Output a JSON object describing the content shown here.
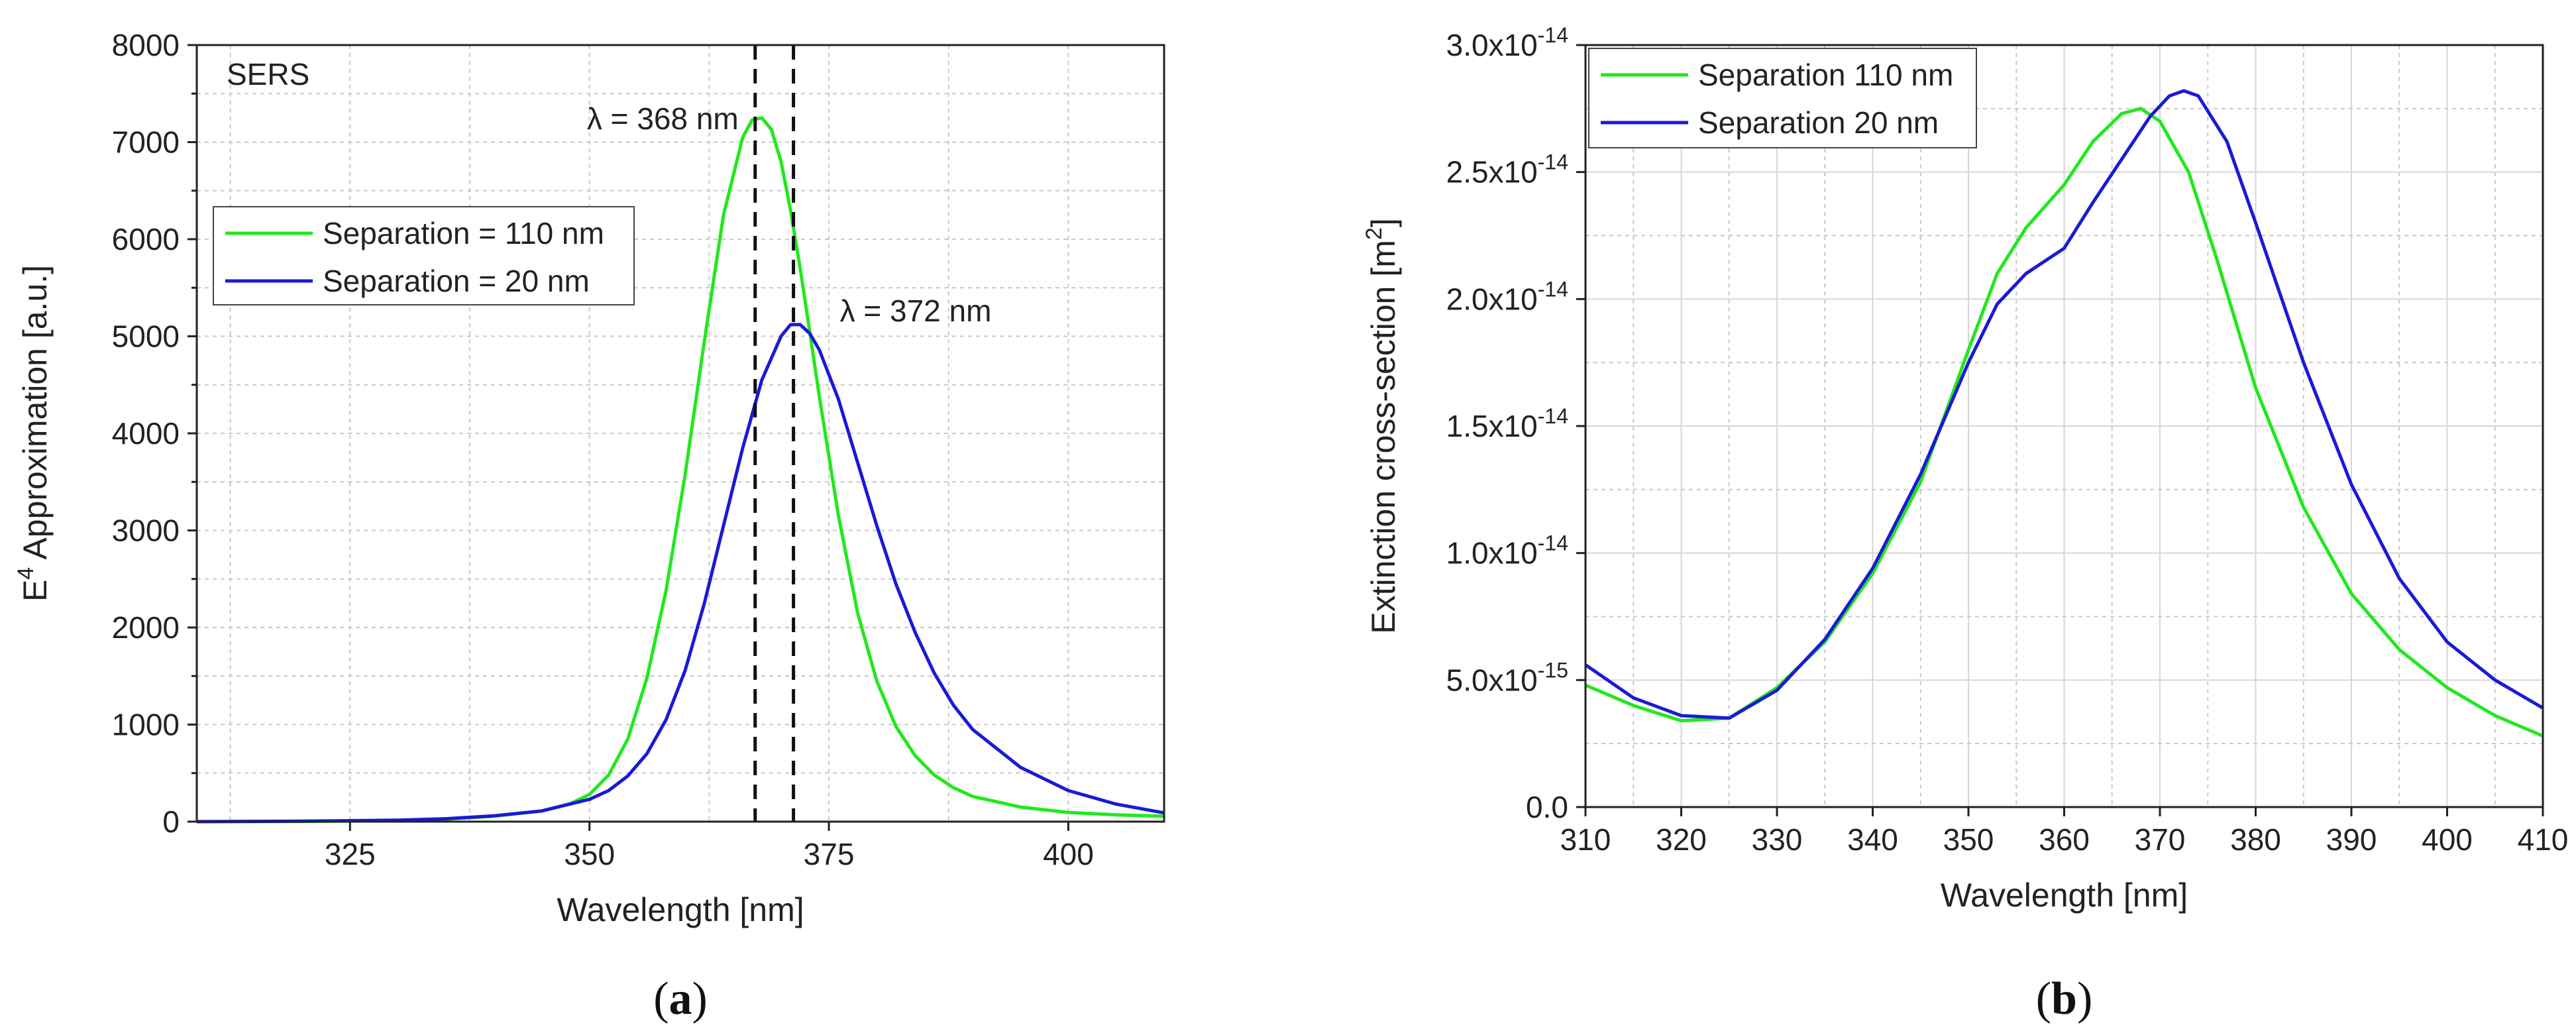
{
  "chart_data": [
    {
      "id": "a",
      "type": "line",
      "panel_label": "a",
      "title": "",
      "inner_label": "SERS",
      "xlabel": "Wavelength [nm]",
      "ylabel_main": "E",
      "ylabel_sup": "4",
      "ylabel_rest": " Approximation [a.u.]",
      "xlim": [
        309,
        410
      ],
      "ylim": [
        0,
        8000
      ],
      "xticks": [
        325,
        350,
        375,
        400
      ],
      "yticks": [
        0,
        1000,
        2000,
        3000,
        4000,
        5000,
        6000,
        7000,
        8000
      ],
      "xtick_labels": [
        "325",
        "350",
        "375",
        "400"
      ],
      "ytick_labels": [
        "0",
        "1000",
        "2000",
        "3000",
        "4000",
        "5000",
        "6000",
        "7000",
        "8000"
      ],
      "grid": true,
      "legend": [
        "Separation = 110 nm",
        "Separation = 20 nm"
      ],
      "legend_position": "middle-left",
      "series": [
        {
          "name": "Separation = 110 nm",
          "color": "#22e81c",
          "x": [
            309,
            320,
            330,
            335,
            340,
            345,
            348,
            350,
            352,
            354,
            356,
            358,
            360,
            362,
            364,
            366,
            367,
            368,
            369,
            370,
            371,
            372,
            373,
            374,
            376,
            378,
            380,
            382,
            384,
            386,
            388,
            390,
            395,
            400,
            405,
            410
          ],
          "y": [
            0,
            2,
            10,
            25,
            55,
            110,
            185,
            280,
            480,
            850,
            1480,
            2380,
            3580,
            4950,
            6250,
            7050,
            7230,
            7250,
            7130,
            6800,
            6300,
            5700,
            5050,
            4380,
            3150,
            2150,
            1450,
            980,
            680,
            480,
            350,
            260,
            150,
            95,
            70,
            55
          ]
        },
        {
          "name": "Separation = 20 nm",
          "color": "#1a1ad6",
          "x": [
            309,
            320,
            330,
            335,
            340,
            345,
            350,
            352,
            354,
            356,
            358,
            360,
            362,
            364,
            366,
            368,
            370,
            371,
            372,
            373,
            374,
            376,
            378,
            380,
            382,
            384,
            386,
            388,
            390,
            395,
            400,
            405,
            410
          ],
          "y": [
            0,
            5,
            15,
            30,
            60,
            110,
            230,
            320,
            470,
            700,
            1050,
            1560,
            2250,
            3050,
            3850,
            4550,
            5000,
            5120,
            5120,
            5030,
            4860,
            4350,
            3700,
            3050,
            2450,
            1950,
            1530,
            1200,
            950,
            560,
            320,
            180,
            90
          ]
        }
      ],
      "vlines": [
        {
          "x": 367.3,
          "label": "λ = 368 nm"
        },
        {
          "x": 371.3,
          "label": "λ = 372 nm"
        }
      ]
    },
    {
      "id": "b",
      "type": "line",
      "panel_label": "b",
      "title": "",
      "xlabel": "Wavelength [nm]",
      "ylabel_main": "Extinction cross-section [m",
      "ylabel_sup": "2",
      "ylabel_rest": "]",
      "xlim": [
        310,
        410
      ],
      "ylim": [
        0,
        3e-14
      ],
      "xticks": [
        310,
        320,
        330,
        340,
        350,
        360,
        370,
        380,
        390,
        400,
        410
      ],
      "xtick_labels": [
        "310",
        "320",
        "330",
        "340",
        "350",
        "360",
        "370",
        "380",
        "390",
        "400",
        "410"
      ],
      "yticks": [
        0,
        5e-15,
        1e-14,
        1.5e-14,
        2e-14,
        2.5e-14,
        3e-14
      ],
      "ytick_labels": [
        {
          "base": "0.0",
          "exp": ""
        },
        {
          "base": "5.0x10",
          "exp": "-15"
        },
        {
          "base": "1.0x10",
          "exp": "-14"
        },
        {
          "base": "1.5x10",
          "exp": "-14"
        },
        {
          "base": "2.0x10",
          "exp": "-14"
        },
        {
          "base": "2.5x10",
          "exp": "-14"
        },
        {
          "base": "3.0x10",
          "exp": "-14"
        }
      ],
      "grid": true,
      "legend": [
        "Separation 110 nm",
        "Separation 20 nm"
      ],
      "legend_position": "top-left",
      "series": [
        {
          "name": "Separation 110 nm",
          "color": "#22e81c",
          "x": [
            310,
            315,
            320,
            325,
            330,
            335,
            340,
            345,
            350,
            353,
            356,
            360,
            363,
            366,
            368,
            370,
            373,
            376,
            380,
            385,
            390,
            395,
            400,
            405,
            410
          ],
          "y": [
            4.8e-15,
            4e-15,
            3.4e-15,
            3.5e-15,
            4.7e-15,
            6.5e-15,
            9.2e-15,
            1.28e-14,
            1.8e-14,
            2.1e-14,
            2.28e-14,
            2.45e-14,
            2.62e-14,
            2.73e-14,
            2.75e-14,
            2.7e-14,
            2.5e-14,
            2.15e-14,
            1.65e-14,
            1.18e-14,
            8.4e-15,
            6.2e-15,
            4.7e-15,
            3.6e-15,
            2.8e-15
          ]
        },
        {
          "name": "Separation 20 nm",
          "color": "#1a1ad6",
          "x": [
            310,
            315,
            320,
            325,
            330,
            335,
            340,
            345,
            350,
            353,
            356,
            360,
            363,
            366,
            369,
            371,
            372.5,
            374,
            377,
            380,
            385,
            390,
            395,
            400,
            405,
            410
          ],
          "y": [
            5.6e-15,
            4.3e-15,
            3.6e-15,
            3.5e-15,
            4.6e-15,
            6.6e-15,
            9.4e-15,
            1.31e-14,
            1.75e-14,
            1.98e-14,
            2.1e-14,
            2.2e-14,
            2.38e-14,
            2.55e-14,
            2.72e-14,
            2.8e-14,
            2.82e-14,
            2.8e-14,
            2.62e-14,
            2.3e-14,
            1.75e-14,
            1.27e-14,
            9e-15,
            6.5e-15,
            5e-15,
            3.9e-15
          ]
        }
      ]
    }
  ]
}
